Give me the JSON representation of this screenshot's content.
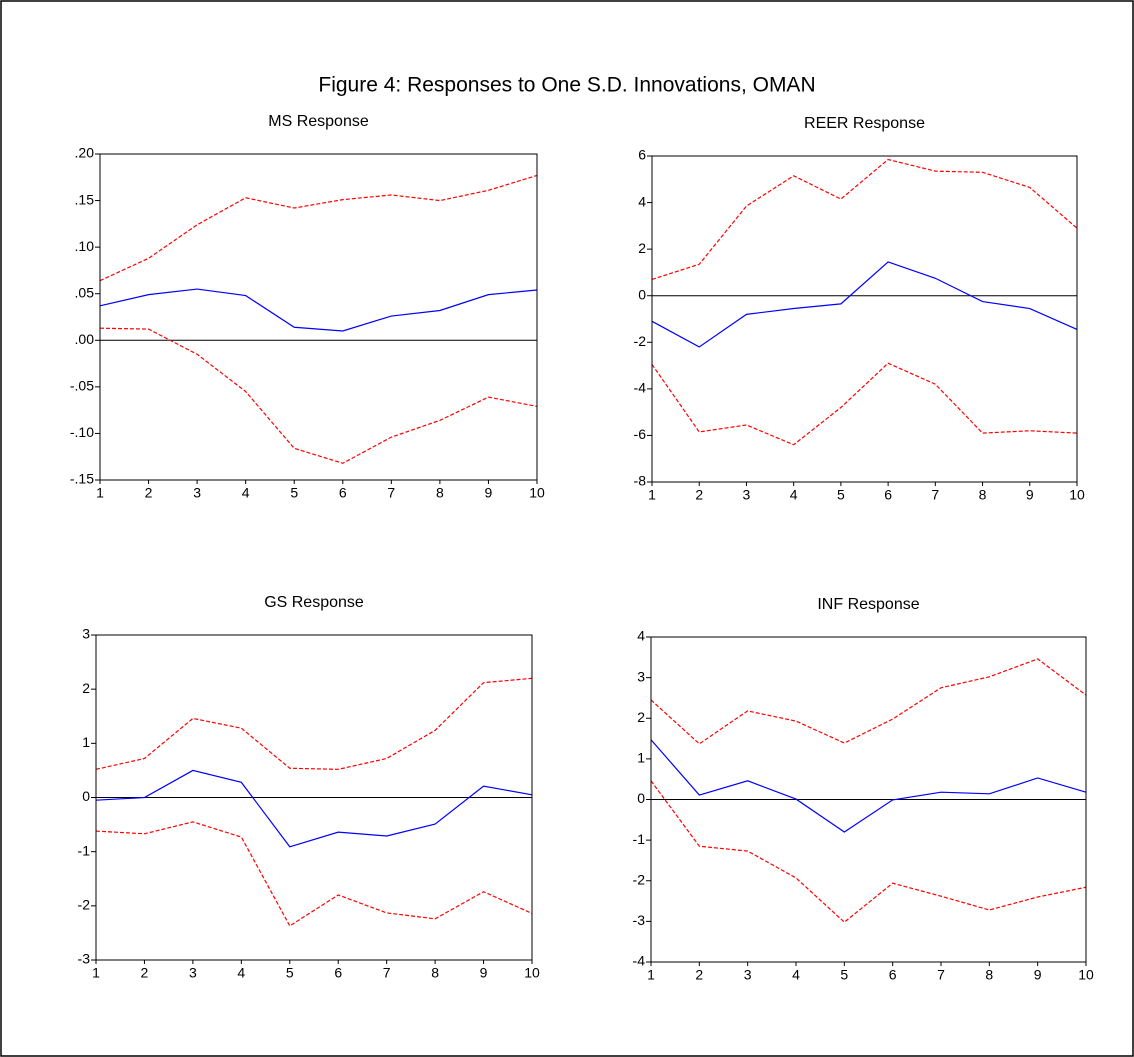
{
  "title": "Figure 4: Responses to One S.D. Innovations, OMAN",
  "chart_data": [
    {
      "type": "line",
      "title": "MS Response",
      "x": [
        1,
        2,
        3,
        4,
        5,
        6,
        7,
        8,
        9,
        10
      ],
      "xlim": [
        1,
        10
      ],
      "xticks": [
        1,
        2,
        3,
        4,
        5,
        6,
        7,
        8,
        9,
        10
      ],
      "ylim": [
        -0.15,
        0.2
      ],
      "yticks": [
        {
          "value": -0.15,
          "label": "-.15"
        },
        {
          "value": -0.1,
          "label": "-.10"
        },
        {
          "value": -0.05,
          "label": "-.05"
        },
        {
          "value": 0,
          "label": ".00"
        },
        {
          "value": 0.05,
          "label": ".05"
        },
        {
          "value": 0.1,
          "label": ".10"
        },
        {
          "value": 0.15,
          "label": ".15"
        },
        {
          "value": 0.2,
          "label": ".20"
        }
      ],
      "zero_line": true,
      "series": [
        {
          "color": "#0000ff",
          "dashed": false,
          "values": [
            0.037,
            0.049,
            0.055,
            0.048,
            0.014,
            0.01,
            0.026,
            0.032,
            0.049,
            0.054
          ]
        },
        {
          "color": "#ff0000",
          "dashed": true,
          "values": [
            0.064,
            0.088,
            0.124,
            0.153,
            0.142,
            0.151,
            0.156,
            0.15,
            0.161,
            0.177
          ]
        },
        {
          "color": "#ff0000",
          "dashed": true,
          "values": [
            0.013,
            0.012,
            -0.015,
            -0.055,
            -0.116,
            -0.132,
            -0.104,
            -0.086,
            -0.061,
            -0.071
          ]
        }
      ]
    },
    {
      "type": "line",
      "title": "REER Response",
      "x": [
        1,
        2,
        3,
        4,
        5,
        6,
        7,
        8,
        9,
        10
      ],
      "xlim": [
        1,
        10
      ],
      "xticks": [
        1,
        2,
        3,
        4,
        5,
        6,
        7,
        8,
        9,
        10
      ],
      "ylim": [
        -8,
        6
      ],
      "yticks": [
        -8,
        -6,
        -4,
        -2,
        0,
        2,
        4,
        6
      ],
      "zero_line": true,
      "series": [
        {
          "color": "#0000ff",
          "dashed": false,
          "values": [
            -1.1,
            -2.2,
            -0.8,
            -0.55,
            -0.35,
            1.45,
            0.75,
            -0.25,
            -0.55,
            -1.45
          ]
        },
        {
          "color": "#ff0000",
          "dashed": true,
          "values": [
            0.7,
            1.35,
            3.85,
            5.15,
            4.15,
            5.85,
            5.35,
            5.3,
            4.65,
            2.9
          ]
        },
        {
          "color": "#ff0000",
          "dashed": true,
          "values": [
            -2.95,
            -5.85,
            -5.55,
            -6.4,
            -4.8,
            -2.9,
            -3.8,
            -5.9,
            -5.8,
            -5.9
          ]
        }
      ]
    },
    {
      "type": "line",
      "title": "GS Response",
      "x": [
        1,
        2,
        3,
        4,
        5,
        6,
        7,
        8,
        9,
        10
      ],
      "xlim": [
        1,
        10
      ],
      "xticks": [
        1,
        2,
        3,
        4,
        5,
        6,
        7,
        8,
        9,
        10
      ],
      "ylim": [
        -3,
        3
      ],
      "yticks": [
        -3,
        -2,
        -1,
        0,
        1,
        2,
        3
      ],
      "zero_line": true,
      "series": [
        {
          "color": "#0000ff",
          "dashed": false,
          "values": [
            -0.05,
            0.0,
            0.5,
            0.28,
            -0.91,
            -0.64,
            -0.71,
            -0.49,
            0.21,
            0.05
          ]
        },
        {
          "color": "#ff0000",
          "dashed": true,
          "values": [
            0.52,
            0.72,
            1.46,
            1.28,
            0.54,
            0.52,
            0.72,
            1.24,
            2.12,
            2.2
          ]
        },
        {
          "color": "#ff0000",
          "dashed": true,
          "values": [
            -0.62,
            -0.67,
            -0.45,
            -0.73,
            -2.37,
            -1.8,
            -2.13,
            -2.24,
            -1.74,
            -2.14
          ]
        }
      ]
    },
    {
      "type": "line",
      "title": "INF Response",
      "x": [
        1,
        2,
        3,
        4,
        5,
        6,
        7,
        8,
        9,
        10
      ],
      "xlim": [
        1,
        10
      ],
      "xticks": [
        1,
        2,
        3,
        4,
        5,
        6,
        7,
        8,
        9,
        10
      ],
      "ylim": [
        -4,
        4
      ],
      "yticks": [
        -4,
        -3,
        -2,
        -1,
        0,
        1,
        2,
        3,
        4
      ],
      "zero_line": true,
      "series": [
        {
          "color": "#0000ff",
          "dashed": false,
          "values": [
            1.47,
            0.11,
            0.46,
            0.01,
            -0.8,
            -0.01,
            0.18,
            0.14,
            0.53,
            0.18
          ]
        },
        {
          "color": "#ff0000",
          "dashed": true,
          "values": [
            2.45,
            1.37,
            2.18,
            1.93,
            1.39,
            1.98,
            2.75,
            3.02,
            3.46,
            2.57
          ]
        },
        {
          "color": "#ff0000",
          "dashed": true,
          "values": [
            0.46,
            -1.15,
            -1.27,
            -1.93,
            -3.02,
            -2.06,
            -2.38,
            -2.72,
            -2.4,
            -2.16
          ]
        }
      ]
    }
  ]
}
